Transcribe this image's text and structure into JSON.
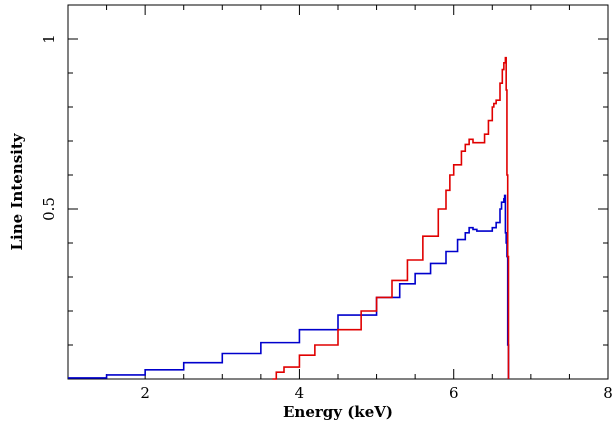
{
  "chart_data": {
    "type": "line",
    "title": "",
    "xlabel": "Energy (keV)",
    "ylabel": "Line Intensity",
    "xlim": [
      1,
      8
    ],
    "ylim": [
      0,
      1.1
    ],
    "x_ticks": [
      2,
      4,
      6,
      8
    ],
    "y_ticks": [
      0.5,
      1
    ],
    "x_tick_labels": [
      "2",
      "4",
      "6",
      "8"
    ],
    "y_tick_labels": [
      "0.5",
      "1"
    ],
    "grid": false,
    "legend": "none",
    "series": [
      {
        "color": "#0000cc",
        "style": "step",
        "x": [
          1.0,
          1.5,
          2.0,
          2.5,
          3.0,
          3.5,
          4.0,
          4.5,
          5.0,
          5.3,
          5.5,
          5.7,
          5.9,
          6.05,
          6.15,
          6.2,
          6.25,
          6.3,
          6.4,
          6.5,
          6.55,
          6.6,
          6.62,
          6.65,
          6.66,
          6.67,
          6.68,
          6.69,
          6.7,
          6.71
        ],
        "y": [
          0.003,
          0.012,
          0.027,
          0.048,
          0.075,
          0.107,
          0.145,
          0.188,
          0.24,
          0.28,
          0.31,
          0.34,
          0.375,
          0.41,
          0.43,
          0.445,
          0.44,
          0.435,
          0.435,
          0.445,
          0.46,
          0.5,
          0.52,
          0.53,
          0.54,
          0.43,
          0.4,
          0.36,
          0.1,
          0.0
        ]
      },
      {
        "color": "#e00000",
        "style": "step",
        "x": [
          3.65,
          3.7,
          3.8,
          4.0,
          4.2,
          4.5,
          4.8,
          5.0,
          5.2,
          5.4,
          5.6,
          5.8,
          5.9,
          5.95,
          6.0,
          6.1,
          6.15,
          6.2,
          6.25,
          6.3,
          6.4,
          6.45,
          6.5,
          6.52,
          6.55,
          6.6,
          6.63,
          6.65,
          6.67,
          6.68,
          6.69,
          6.7,
          6.71
        ],
        "y": [
          0.0,
          0.02,
          0.035,
          0.07,
          0.1,
          0.145,
          0.2,
          0.24,
          0.29,
          0.35,
          0.42,
          0.5,
          0.555,
          0.6,
          0.63,
          0.67,
          0.69,
          0.705,
          0.695,
          0.695,
          0.72,
          0.76,
          0.8,
          0.81,
          0.82,
          0.87,
          0.91,
          0.93,
          0.945,
          0.85,
          0.6,
          0.36,
          0.0
        ]
      }
    ]
  }
}
